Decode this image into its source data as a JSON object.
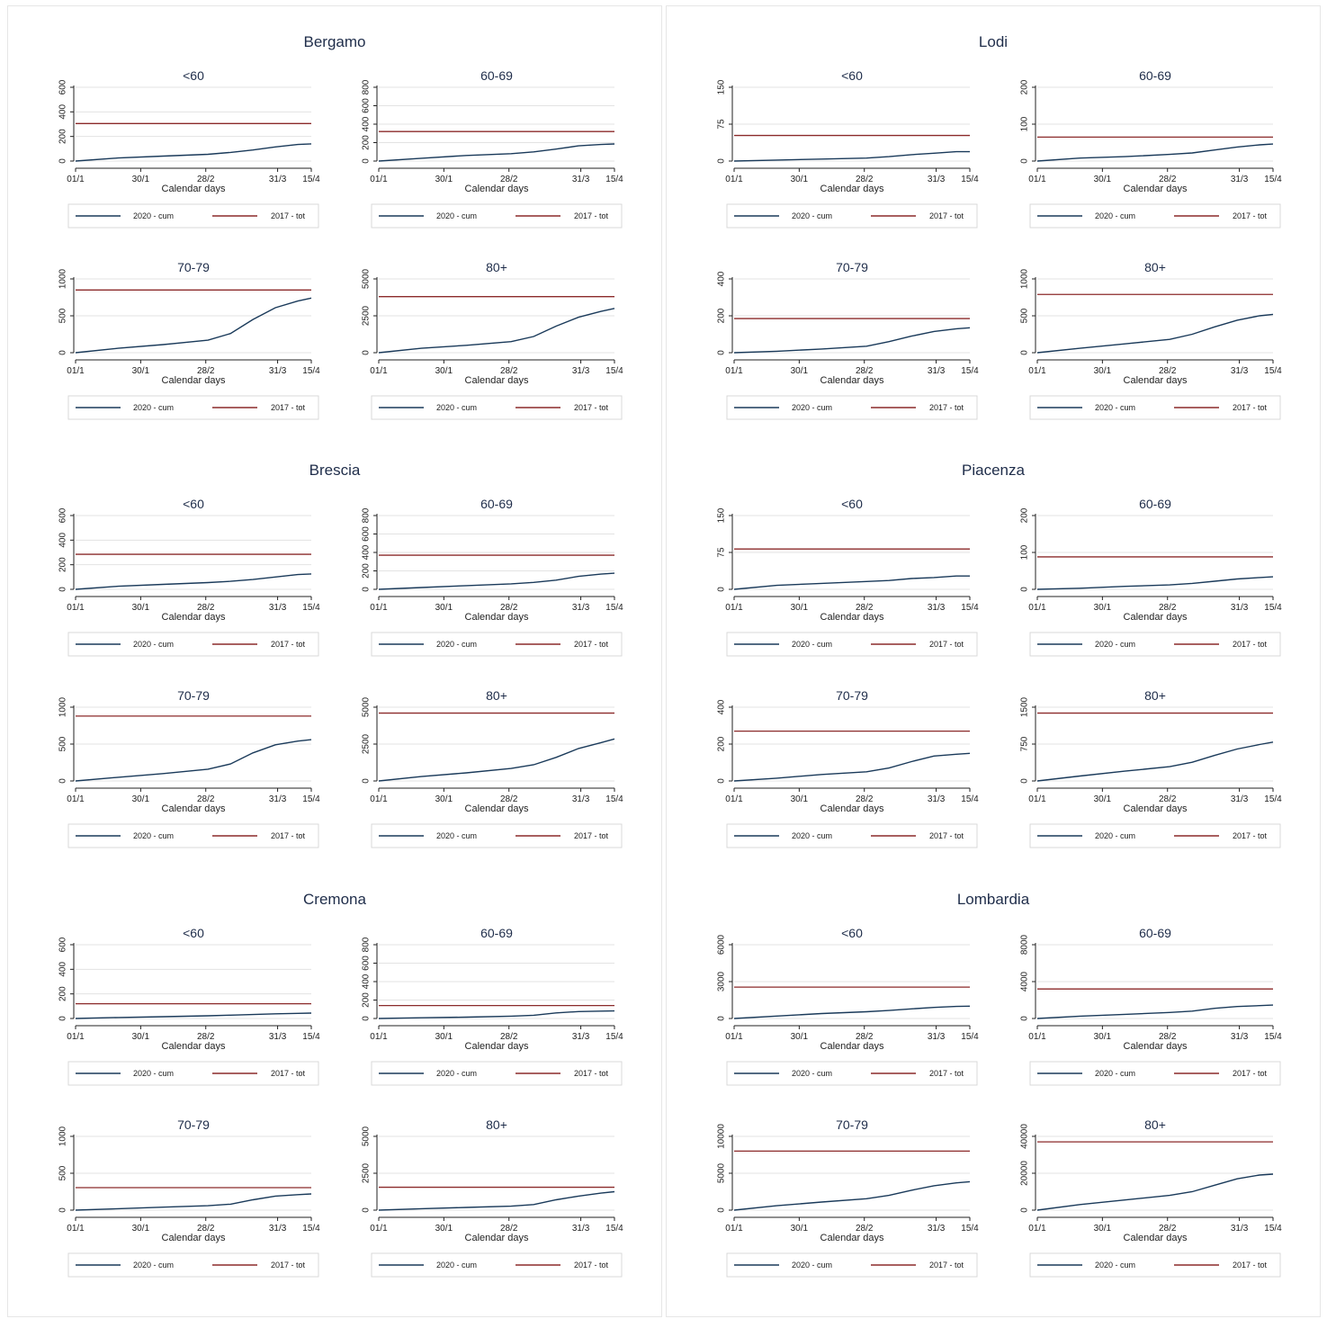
{
  "common": {
    "xlabel": "Calendar days",
    "x_ticks": [
      "01/1",
      "30/1",
      "28/2",
      "31/3",
      "15/4"
    ],
    "x_tick_days": [
      1,
      30,
      59,
      91,
      106
    ],
    "x_range": [
      1,
      106
    ],
    "legend": [
      "2020 - cum",
      "2017 - tot"
    ],
    "colors": {
      "cum": "#1a3a5a",
      "tot": "#8b2a2a",
      "grid": "#e3e3e3",
      "axis": "#222222"
    }
  },
  "chart_data": [
    {
      "type": "line",
      "title": "Bergamo",
      "panels": [
        {
          "title": "<60",
          "ylim": [
            0,
            600
          ],
          "yticks": [
            0,
            200,
            400,
            600
          ],
          "tot": 305,
          "x": [
            1,
            20,
            40,
            60,
            70,
            80,
            90,
            100,
            106
          ],
          "series": [
            {
              "name": "2020 - cum",
              "values": [
                0,
                25,
                40,
                55,
                70,
                90,
                115,
                135,
                140
              ]
            }
          ]
        },
        {
          "title": "60-69",
          "ylim": [
            0,
            800
          ],
          "yticks": [
            0,
            200,
            400,
            600,
            800
          ],
          "tot": 320,
          "x": [
            1,
            20,
            40,
            60,
            70,
            80,
            90,
            100,
            106
          ],
          "series": [
            {
              "name": "2020 - cum",
              "values": [
                0,
                30,
                60,
                80,
                100,
                130,
                165,
                180,
                185
              ]
            }
          ]
        },
        {
          "title": "70-79",
          "ylim": [
            0,
            1000
          ],
          "yticks": [
            0,
            500,
            1000
          ],
          "tot": 850,
          "x": [
            1,
            20,
            40,
            60,
            70,
            80,
            90,
            100,
            106
          ],
          "series": [
            {
              "name": "2020 - cum",
              "values": [
                0,
                60,
                110,
                170,
                260,
                450,
                610,
                700,
                740
              ]
            }
          ]
        },
        {
          "title": "80+",
          "ylim": [
            0,
            5000
          ],
          "yticks": [
            0,
            2500,
            5000
          ],
          "tot": 3800,
          "x": [
            1,
            20,
            40,
            60,
            70,
            80,
            90,
            100,
            106
          ],
          "series": [
            {
              "name": "2020 - cum",
              "values": [
                0,
                300,
                500,
                750,
                1100,
                1800,
                2400,
                2800,
                3000
              ]
            }
          ]
        }
      ]
    },
    {
      "type": "line",
      "title": "Lodi",
      "panels": [
        {
          "title": "<60",
          "ylim": [
            0,
            150
          ],
          "yticks": [
            0,
            75,
            150
          ],
          "tot": 52,
          "x": [
            1,
            20,
            40,
            60,
            70,
            80,
            90,
            100,
            106
          ],
          "series": [
            {
              "name": "2020 - cum",
              "values": [
                0,
                2,
                4,
                6,
                9,
                13,
                16,
                19,
                19
              ]
            }
          ]
        },
        {
          "title": "60-69",
          "ylim": [
            0,
            200
          ],
          "yticks": [
            0,
            100,
            200
          ],
          "tot": 65,
          "x": [
            1,
            20,
            40,
            60,
            70,
            80,
            90,
            100,
            106
          ],
          "series": [
            {
              "name": "2020 - cum",
              "values": [
                0,
                8,
                12,
                18,
                22,
                30,
                38,
                44,
                46
              ]
            }
          ]
        },
        {
          "title": "70-79",
          "ylim": [
            0,
            400
          ],
          "yticks": [
            0,
            200,
            400
          ],
          "tot": 185,
          "x": [
            1,
            20,
            40,
            60,
            70,
            80,
            90,
            100,
            106
          ],
          "series": [
            {
              "name": "2020 - cum",
              "values": [
                0,
                8,
                20,
                35,
                60,
                90,
                115,
                130,
                135
              ]
            }
          ]
        },
        {
          "title": "80+",
          "ylim": [
            0,
            1000
          ],
          "yticks": [
            0,
            500,
            1000
          ],
          "tot": 790,
          "x": [
            1,
            20,
            40,
            60,
            70,
            80,
            90,
            100,
            106
          ],
          "series": [
            {
              "name": "2020 - cum",
              "values": [
                0,
                60,
                120,
                180,
                250,
                350,
                440,
                500,
                520
              ]
            }
          ]
        }
      ]
    },
    {
      "type": "line",
      "title": "Brescia",
      "panels": [
        {
          "title": "<60",
          "ylim": [
            0,
            600
          ],
          "yticks": [
            0,
            200,
            400,
            600
          ],
          "tot": 285,
          "x": [
            1,
            20,
            40,
            60,
            70,
            80,
            90,
            100,
            106
          ],
          "series": [
            {
              "name": "2020 - cum",
              "values": [
                0,
                25,
                40,
                55,
                65,
                80,
                100,
                120,
                125
              ]
            }
          ]
        },
        {
          "title": "60-69",
          "ylim": [
            0,
            800
          ],
          "yticks": [
            0,
            200,
            400,
            600,
            800
          ],
          "tot": 370,
          "x": [
            1,
            20,
            40,
            60,
            70,
            80,
            90,
            100,
            106
          ],
          "series": [
            {
              "name": "2020 - cum",
              "values": [
                0,
                20,
                40,
                60,
                75,
                100,
                140,
                165,
                175
              ]
            }
          ]
        },
        {
          "title": "70-79",
          "ylim": [
            0,
            1000
          ],
          "yticks": [
            0,
            500,
            1000
          ],
          "tot": 880,
          "x": [
            1,
            20,
            40,
            60,
            70,
            80,
            90,
            100,
            106
          ],
          "series": [
            {
              "name": "2020 - cum",
              "values": [
                0,
                50,
                100,
                160,
                230,
                380,
                490,
                540,
                560
              ]
            }
          ]
        },
        {
          "title": "80+",
          "ylim": [
            0,
            5000
          ],
          "yticks": [
            0,
            2500,
            5000
          ],
          "tot": 4600,
          "x": [
            1,
            20,
            40,
            60,
            70,
            80,
            90,
            100,
            106
          ],
          "series": [
            {
              "name": "2020 - cum",
              "values": [
                0,
                300,
                550,
                850,
                1100,
                1600,
                2200,
                2600,
                2850
              ]
            }
          ]
        }
      ]
    },
    {
      "type": "line",
      "title": "Piacenza",
      "panels": [
        {
          "title": "<60",
          "ylim": [
            0,
            150
          ],
          "yticks": [
            0,
            75,
            150
          ],
          "tot": 82,
          "x": [
            1,
            20,
            40,
            60,
            70,
            80,
            90,
            100,
            106
          ],
          "series": [
            {
              "name": "2020 - cum",
              "values": [
                0,
                8,
                12,
                16,
                18,
                22,
                24,
                27,
                27
              ]
            }
          ]
        },
        {
          "title": "60-69",
          "ylim": [
            0,
            200
          ],
          "yticks": [
            0,
            100,
            200
          ],
          "tot": 88,
          "x": [
            1,
            20,
            40,
            60,
            70,
            80,
            90,
            100,
            106
          ],
          "series": [
            {
              "name": "2020 - cum",
              "values": [
                0,
                3,
                8,
                12,
                16,
                22,
                28,
                32,
                34
              ]
            }
          ]
        },
        {
          "title": "70-79",
          "ylim": [
            0,
            400
          ],
          "yticks": [
            0,
            200,
            400
          ],
          "tot": 270,
          "x": [
            1,
            20,
            40,
            60,
            70,
            80,
            90,
            100,
            106
          ],
          "series": [
            {
              "name": "2020 - cum",
              "values": [
                0,
                15,
                35,
                50,
                70,
                105,
                135,
                145,
                150
              ]
            }
          ]
        },
        {
          "title": "80+",
          "ylim": [
            0,
            1500
          ],
          "yticks": [
            0,
            750,
            1500
          ],
          "tot": 1380,
          "x": [
            1,
            20,
            40,
            60,
            70,
            80,
            90,
            100,
            106
          ],
          "series": [
            {
              "name": "2020 - cum",
              "values": [
                0,
                100,
                200,
                290,
                380,
                520,
                650,
                740,
                790
              ]
            }
          ]
        }
      ]
    },
    {
      "type": "line",
      "title": "Cremona",
      "panels": [
        {
          "title": "<60",
          "ylim": [
            0,
            600
          ],
          "yticks": [
            0,
            200,
            400,
            600
          ],
          "tot": 120,
          "x": [
            1,
            20,
            40,
            60,
            70,
            80,
            90,
            100,
            106
          ],
          "series": [
            {
              "name": "2020 - cum",
              "values": [
                0,
                8,
                15,
                22,
                27,
                32,
                38,
                42,
                44
              ]
            }
          ]
        },
        {
          "title": "60-69",
          "ylim": [
            0,
            800
          ],
          "yticks": [
            0,
            200,
            400,
            600,
            800
          ],
          "tot": 140,
          "x": [
            1,
            20,
            40,
            60,
            70,
            80,
            90,
            100,
            106
          ],
          "series": [
            {
              "name": "2020 - cum",
              "values": [
                0,
                8,
                15,
                25,
                35,
                60,
                75,
                80,
                82
              ]
            }
          ]
        },
        {
          "title": "70-79",
          "ylim": [
            0,
            1000
          ],
          "yticks": [
            0,
            500,
            1000
          ],
          "tot": 305,
          "x": [
            1,
            20,
            40,
            60,
            70,
            80,
            90,
            100,
            106
          ],
          "series": [
            {
              "name": "2020 - cum",
              "values": [
                0,
                20,
                40,
                60,
                80,
                140,
                190,
                210,
                220
              ]
            }
          ]
        },
        {
          "title": "80+",
          "ylim": [
            0,
            5000
          ],
          "yticks": [
            0,
            2500,
            5000
          ],
          "tot": 1550,
          "x": [
            1,
            20,
            40,
            60,
            70,
            80,
            90,
            100,
            106
          ],
          "series": [
            {
              "name": "2020 - cum",
              "values": [
                0,
                100,
                180,
                270,
                380,
                700,
                950,
                1150,
                1250
              ]
            }
          ]
        }
      ]
    },
    {
      "type": "line",
      "title": "Lombardia",
      "panels": [
        {
          "title": "<60",
          "ylim": [
            0,
            6000
          ],
          "yticks": [
            0,
            3000,
            6000
          ],
          "tot": 2550,
          "x": [
            1,
            20,
            40,
            60,
            70,
            80,
            90,
            100,
            106
          ],
          "series": [
            {
              "name": "2020 - cum",
              "values": [
                0,
                200,
                400,
                550,
                650,
                780,
                900,
                980,
                1000
              ]
            }
          ]
        },
        {
          "title": "60-69",
          "ylim": [
            0,
            8000
          ],
          "yticks": [
            0,
            4000,
            8000
          ],
          "tot": 3200,
          "x": [
            1,
            20,
            40,
            60,
            70,
            80,
            90,
            100,
            106
          ],
          "series": [
            {
              "name": "2020 - cum",
              "values": [
                0,
                250,
                450,
                650,
                800,
                1100,
                1300,
                1400,
                1450
              ]
            }
          ]
        },
        {
          "title": "70-79",
          "ylim": [
            0,
            10000
          ],
          "yticks": [
            0,
            5000,
            10000
          ],
          "tot": 8000,
          "x": [
            1,
            20,
            40,
            60,
            70,
            80,
            90,
            100,
            106
          ],
          "series": [
            {
              "name": "2020 - cum",
              "values": [
                0,
                600,
                1100,
                1550,
                2000,
                2700,
                3300,
                3700,
                3850
              ]
            }
          ]
        },
        {
          "title": "80+",
          "ylim": [
            0,
            40000
          ],
          "yticks": [
            0,
            20000,
            40000
          ],
          "tot": 37000,
          "x": [
            1,
            20,
            40,
            60,
            70,
            80,
            90,
            100,
            106
          ],
          "series": [
            {
              "name": "2020 - cum",
              "values": [
                0,
                3000,
                5500,
                8000,
                10000,
                13500,
                17000,
                19000,
                19500
              ]
            }
          ]
        }
      ]
    }
  ]
}
